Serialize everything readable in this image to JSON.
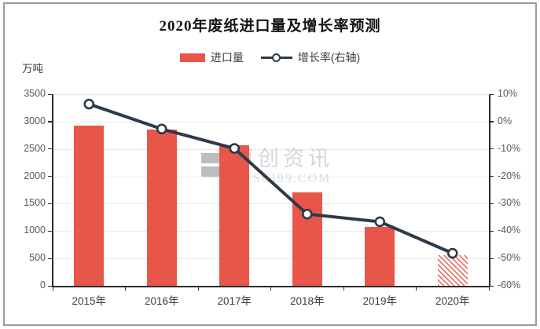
{
  "title": "2020年废纸进口量及增长率预测",
  "unit_label": "万吨",
  "legend": {
    "items": [
      {
        "label": "进口量",
        "type": "bar"
      },
      {
        "label": "增长率(右轴)",
        "type": "line"
      }
    ]
  },
  "watermark": {
    "line1": "卓创资讯",
    "line2": "SCI99.COM"
  },
  "colors": {
    "bar": "#e8564a",
    "line": "#2d3a48",
    "grid": "#e8e8e8",
    "axis": "#2b2b2b",
    "tick_text": "#595959",
    "label_text": "#3d3d3d",
    "frame_border": "#9b9b9b",
    "watermark_text": "#d6d6d6"
  },
  "chart_data": {
    "type": "bar+line combo",
    "title": "2020年废纸进口量及增长率预测",
    "categories": [
      "2015年",
      "2016年",
      "2017年",
      "2018年",
      "2019年",
      "2020年"
    ],
    "series": [
      {
        "name": "进口量",
        "type": "bar",
        "axis": "left",
        "unit": "万吨",
        "values": [
          2928,
          2850,
          2572,
          1703,
          1080,
          560
        ],
        "note": "2020 bar drawn hatched (forecast)",
        "hatched_index": 5
      },
      {
        "name": "增长率(右轴)",
        "type": "line",
        "axis": "right",
        "unit": "%",
        "values": [
          6.4,
          -2.7,
          -9.8,
          -33.8,
          -36.6,
          -48.1
        ]
      }
    ],
    "left_axis": {
      "label": "万吨",
      "min": 0,
      "max": 3500,
      "tick_step": 500,
      "ticks": [
        "3500",
        "3000",
        "2500",
        "2000",
        "1500",
        "1000",
        "500",
        "0"
      ]
    },
    "right_axis": {
      "label": "增长率",
      "min": -60,
      "max": 10,
      "tick_step": 10,
      "ticks": [
        "10%",
        "0%",
        "-10%",
        "-20%",
        "-30%",
        "-40%",
        "-50%",
        "-60%"
      ]
    },
    "grid": true,
    "legend_position": "top-center"
  }
}
